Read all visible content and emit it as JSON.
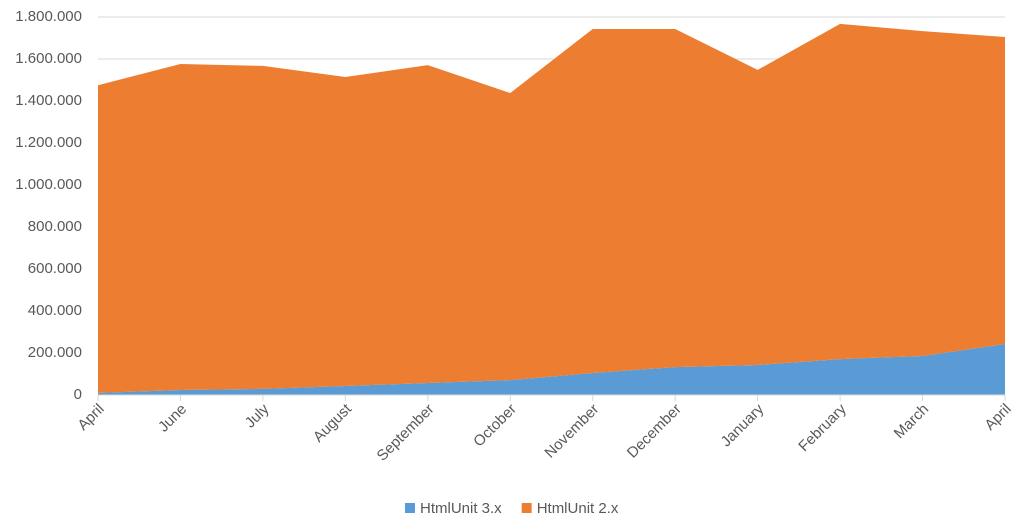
{
  "chart_data": {
    "type": "stacked_area",
    "categories": [
      "April",
      "June",
      "July",
      "August",
      "September",
      "October",
      "November",
      "December",
      "January",
      "February",
      "March",
      "April"
    ],
    "series": [
      {
        "name": "HtmlUnit 3.x",
        "color": "#5b9bd5",
        "values": [
          10000,
          24000,
          29000,
          43000,
          57000,
          71000,
          105000,
          133000,
          143000,
          171000,
          186000,
          243000
        ]
      },
      {
        "name": "HtmlUnit 2.x",
        "color": "#ed7d31",
        "values": [
          1465000,
          1552000,
          1538000,
          1471000,
          1514000,
          1367000,
          1638000,
          1610000,
          1405000,
          1596000,
          1547000,
          1462000
        ]
      }
    ],
    "ylim": [
      0,
      1800000
    ],
    "yticks": [
      0,
      {
        "value": 200000,
        "label": "200.000"
      },
      {
        "value": 400000,
        "label": "400.000"
      },
      {
        "value": 600000,
        "label": "600.000"
      },
      {
        "value": 800000,
        "label": "800.000"
      },
      {
        "value": 1000000,
        "label": "1.000.000"
      },
      {
        "value": 1200000,
        "label": "1.200.000"
      },
      {
        "value": 1400000,
        "label": "1.400.000"
      },
      {
        "value": 1600000,
        "label": "1.600.000"
      },
      {
        "value": 1800000,
        "label": "1.800.000"
      }
    ],
    "grid": true,
    "legend": "bottom"
  }
}
